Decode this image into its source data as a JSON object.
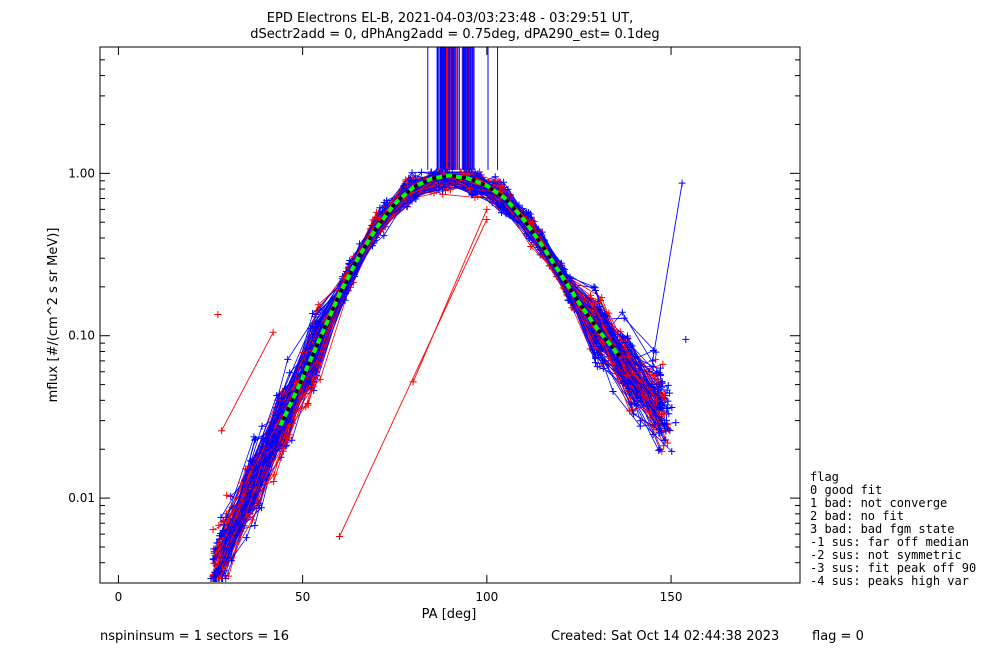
{
  "chart_data": {
    "type": "line",
    "title": "EPD Electrons EL-B, 2021-04-03/03:23:48 - 03:29:51 UT,",
    "subtitle": "dSectr2add = 0, dPhAng2add = 0.75deg, dPA290_est=   0.1deg",
    "xlabel": "PA [deg]",
    "ylabel": "mflux [#/(cm^2 s sr MeV)]",
    "xlim": [
      -5,
      185
    ],
    "ylim": [
      0.003,
      6
    ],
    "y_scale": "log",
    "x_ticks": [
      0,
      50,
      100,
      150
    ],
    "x_tick_labels": [
      "0",
      "50",
      "100",
      "150"
    ],
    "y_ticks": [
      0.01,
      0.1,
      1.0
    ],
    "y_tick_labels": [
      "0.01",
      "0.10",
      "1.00"
    ],
    "grid": false,
    "series_colors": {
      "red": "#ff0000",
      "blue": "#0000ff",
      "fit": "#00ff00"
    },
    "fit_curve": {
      "x": [
        44,
        50,
        55,
        60,
        65,
        70,
        75,
        80,
        85,
        90,
        95,
        100,
        105,
        110,
        115,
        120,
        125,
        130,
        136
      ],
      "y": [
        0.028,
        0.055,
        0.1,
        0.18,
        0.3,
        0.46,
        0.65,
        0.82,
        0.93,
        0.97,
        0.93,
        0.84,
        0.7,
        0.52,
        0.36,
        0.24,
        0.16,
        0.11,
        0.075
      ]
    },
    "vertical_lines_x_range": [
      80,
      103
    ],
    "bundle_range": [
      25,
      157
    ]
  },
  "legend": {
    "title": "flag",
    "lines": [
      " 0 good fit",
      " 1 bad: not converge",
      " 2 bad: no fit",
      " 3 bad: bad fgm state",
      "-1 sus: far off median",
      "-2 sus: not symmetric",
      "-3 sus: fit peak off 90",
      "-4 sus: peaks high var"
    ]
  },
  "footer": {
    "left": "nspininsum =  1  sectors = 16",
    "center": "Created: Sat Oct 14 02:44:38 2023",
    "right": "flag = 0"
  }
}
